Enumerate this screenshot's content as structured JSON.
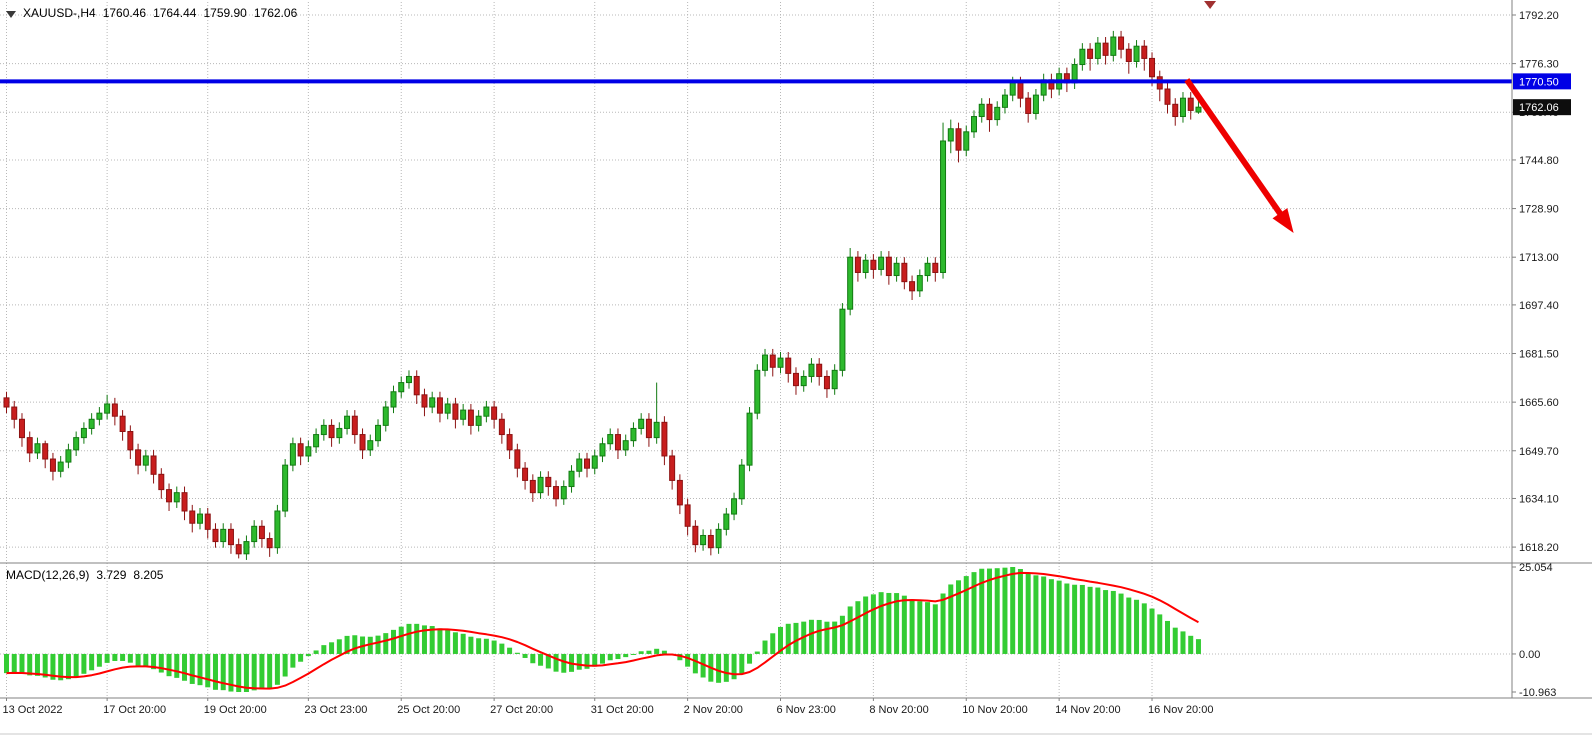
{
  "header": {
    "symbol_period": "XAUUSD-,H4",
    "open": "1760.46",
    "high": "1764.44",
    "low": "1759.90",
    "close": "1762.06"
  },
  "macd_header": {
    "label": "MACD(12,26,9)",
    "macd_value": "3.729",
    "signal_value": "8.205"
  },
  "chart_data": {
    "type": "candlestick",
    "symbol": "XAUUSD-",
    "timeframe": "H4",
    "quote": {
      "open": 1760.46,
      "high": 1764.44,
      "low": 1759.9,
      "close": 1762.06
    },
    "candles": [
      [
        1667,
        1669,
        1662,
        1664
      ],
      [
        1664,
        1666,
        1657,
        1660
      ],
      [
        1660,
        1662,
        1651,
        1654
      ],
      [
        1654,
        1656,
        1646,
        1649
      ],
      [
        1649,
        1654,
        1647,
        1652
      ],
      [
        1652,
        1653,
        1644,
        1647
      ],
      [
        1647,
        1649,
        1640,
        1643
      ],
      [
        1643,
        1648,
        1641,
        1646
      ],
      [
        1646,
        1652,
        1644,
        1650
      ],
      [
        1650,
        1656,
        1648,
        1654
      ],
      [
        1654,
        1659,
        1652,
        1657
      ],
      [
        1657,
        1662,
        1655,
        1660
      ],
      [
        1660,
        1664,
        1658,
        1662
      ],
      [
        1662,
        1668,
        1660,
        1665
      ],
      [
        1665,
        1667,
        1658,
        1661
      ],
      [
        1661,
        1663,
        1653,
        1656
      ],
      [
        1656,
        1658,
        1647,
        1650
      ],
      [
        1650,
        1652,
        1642,
        1645
      ],
      [
        1645,
        1650,
        1643,
        1648
      ],
      [
        1648,
        1650,
        1639,
        1642
      ],
      [
        1642,
        1644,
        1634,
        1637
      ],
      [
        1637,
        1639,
        1630,
        1633
      ],
      [
        1633,
        1638,
        1631,
        1636
      ],
      [
        1636,
        1638,
        1627,
        1630
      ],
      [
        1630,
        1632,
        1623,
        1626
      ],
      [
        1626,
        1631,
        1624,
        1629
      ],
      [
        1629,
        1631,
        1621,
        1624
      ],
      [
        1624,
        1626,
        1618,
        1620
      ],
      [
        1620,
        1626,
        1618,
        1624
      ],
      [
        1624,
        1626,
        1616,
        1619
      ],
      [
        1619,
        1621,
        1614.5,
        1616
      ],
      [
        1616,
        1622,
        1614,
        1620
      ],
      [
        1620,
        1627,
        1618,
        1625
      ],
      [
        1625,
        1627,
        1618,
        1621
      ],
      [
        1621,
        1623,
        1615,
        1618
      ],
      [
        1618,
        1632,
        1616,
        1630
      ],
      [
        1630,
        1647,
        1628,
        1645
      ],
      [
        1645,
        1654,
        1643,
        1652
      ],
      [
        1652,
        1654,
        1645,
        1648
      ],
      [
        1648,
        1653,
        1646,
        1651
      ],
      [
        1651,
        1657,
        1649,
        1655
      ],
      [
        1655,
        1660,
        1653,
        1658
      ],
      [
        1658,
        1660,
        1651,
        1654
      ],
      [
        1654,
        1659,
        1652,
        1657
      ],
      [
        1657,
        1663,
        1655,
        1661
      ],
      [
        1661,
        1663,
        1652,
        1655
      ],
      [
        1655,
        1657,
        1647,
        1650
      ],
      [
        1650,
        1655,
        1648,
        1653
      ],
      [
        1653,
        1660,
        1651,
        1658
      ],
      [
        1658,
        1666,
        1656,
        1664
      ],
      [
        1664,
        1671,
        1662,
        1669
      ],
      [
        1669,
        1674,
        1667,
        1672
      ],
      [
        1672,
        1676,
        1670,
        1674
      ],
      [
        1674,
        1676,
        1665,
        1668
      ],
      [
        1668,
        1670,
        1661,
        1664
      ],
      [
        1664,
        1669,
        1662,
        1667
      ],
      [
        1667,
        1669,
        1659,
        1662
      ],
      [
        1662,
        1667,
        1660,
        1665
      ],
      [
        1665,
        1667,
        1657,
        1660
      ],
      [
        1660,
        1665,
        1658,
        1663
      ],
      [
        1663,
        1665,
        1655,
        1658
      ],
      [
        1658,
        1663,
        1656,
        1661
      ],
      [
        1661,
        1666,
        1659,
        1664
      ],
      [
        1664,
        1666,
        1657,
        1660
      ],
      [
        1660,
        1662,
        1652,
        1655
      ],
      [
        1655,
        1657,
        1647,
        1650
      ],
      [
        1650,
        1652,
        1641,
        1644
      ],
      [
        1644,
        1646,
        1637,
        1640
      ],
      [
        1640,
        1642,
        1633,
        1636
      ],
      [
        1636,
        1643,
        1634,
        1641
      ],
      [
        1641,
        1643,
        1635,
        1638
      ],
      [
        1638,
        1640,
        1631.5,
        1634
      ],
      [
        1634,
        1640,
        1632,
        1638
      ],
      [
        1638,
        1645,
        1636,
        1643
      ],
      [
        1643,
        1649,
        1641,
        1647
      ],
      [
        1647,
        1649,
        1641,
        1644
      ],
      [
        1644,
        1650,
        1642,
        1648
      ],
      [
        1648,
        1654,
        1646,
        1652
      ],
      [
        1652,
        1657,
        1650,
        1655
      ],
      [
        1655,
        1657,
        1647,
        1650
      ],
      [
        1650,
        1655,
        1648,
        1653
      ],
      [
        1653,
        1659,
        1651,
        1657
      ],
      [
        1657,
        1662,
        1655,
        1660
      ],
      [
        1660,
        1662,
        1651,
        1654
      ],
      [
        1654,
        1672,
        1652,
        1659
      ],
      [
        1659,
        1661,
        1645,
        1648
      ],
      [
        1648,
        1650,
        1637,
        1640
      ],
      [
        1640,
        1642,
        1629,
        1632
      ],
      [
        1632,
        1634,
        1622,
        1625
      ],
      [
        1625,
        1627,
        1616.5,
        1619
      ],
      [
        1619,
        1624,
        1617,
        1622
      ],
      [
        1622,
        1624,
        1615.5,
        1618
      ],
      [
        1618,
        1626,
        1616,
        1624
      ],
      [
        1624,
        1631,
        1622,
        1629
      ],
      [
        1629,
        1636,
        1627,
        1634
      ],
      [
        1634,
        1647,
        1632,
        1645
      ],
      [
        1645,
        1664,
        1643,
        1662
      ],
      [
        1662,
        1678,
        1660,
        1676
      ],
      [
        1676,
        1683,
        1674,
        1681
      ],
      [
        1681,
        1683,
        1674,
        1677
      ],
      [
        1677,
        1682,
        1675,
        1680
      ],
      [
        1680,
        1682,
        1672,
        1675
      ],
      [
        1675,
        1677,
        1668,
        1671
      ],
      [
        1671,
        1676,
        1669,
        1674
      ],
      [
        1674,
        1680,
        1672,
        1678
      ],
      [
        1678,
        1680,
        1671,
        1674
      ],
      [
        1674,
        1676,
        1667,
        1670
      ],
      [
        1670,
        1678,
        1668,
        1676
      ],
      [
        1676,
        1698,
        1674,
        1696
      ],
      [
        1696,
        1716,
        1694,
        1713
      ],
      [
        1713,
        1715,
        1705,
        1708
      ],
      [
        1708,
        1714,
        1706,
        1712
      ],
      [
        1712,
        1714,
        1706,
        1709
      ],
      [
        1709,
        1715,
        1707,
        1713
      ],
      [
        1713,
        1715,
        1704,
        1707
      ],
      [
        1707,
        1713,
        1705,
        1711
      ],
      [
        1711,
        1713,
        1702.5,
        1705
      ],
      [
        1705,
        1707,
        1699,
        1702
      ],
      [
        1702,
        1709,
        1700,
        1707
      ],
      [
        1707,
        1713,
        1705,
        1711
      ],
      [
        1711,
        1713,
        1705,
        1708
      ],
      [
        1708,
        1757,
        1706,
        1751
      ],
      [
        1751,
        1758,
        1747,
        1755
      ],
      [
        1755,
        1757,
        1744,
        1748
      ],
      [
        1748,
        1756,
        1746,
        1754
      ],
      [
        1754,
        1761,
        1752,
        1759
      ],
      [
        1759,
        1765,
        1757,
        1763
      ],
      [
        1763,
        1765,
        1754,
        1758
      ],
      [
        1758,
        1764,
        1756,
        1762
      ],
      [
        1762,
        1768,
        1760,
        1766
      ],
      [
        1766,
        1772,
        1764,
        1770
      ],
      [
        1770,
        1772,
        1762,
        1765
      ],
      [
        1765,
        1767,
        1757,
        1760
      ],
      [
        1760,
        1768,
        1758,
        1766
      ],
      [
        1766,
        1773,
        1764,
        1771
      ],
      [
        1771,
        1773,
        1765,
        1768
      ],
      [
        1768,
        1775,
        1766,
        1773
      ],
      [
        1773,
        1775,
        1767,
        1770
      ],
      [
        1770,
        1778,
        1768,
        1776
      ],
      [
        1776,
        1783,
        1774,
        1781
      ],
      [
        1781,
        1783,
        1774,
        1778
      ],
      [
        1778,
        1785,
        1776,
        1783
      ],
      [
        1783,
        1785,
        1776,
        1779
      ],
      [
        1779,
        1787,
        1777,
        1785
      ],
      [
        1785,
        1787,
        1778,
        1781
      ],
      [
        1781,
        1783,
        1773,
        1777
      ],
      [
        1777,
        1784,
        1775,
        1782
      ],
      [
        1782,
        1784,
        1774,
        1778
      ],
      [
        1778,
        1780,
        1769,
        1772
      ],
      [
        1772,
        1774,
        1764,
        1768
      ],
      [
        1768,
        1770,
        1760,
        1763
      ],
      [
        1763,
        1765,
        1756,
        1759
      ],
      [
        1759,
        1767,
        1757,
        1765
      ],
      [
        1765,
        1767,
        1758,
        1761
      ],
      [
        1760.46,
        1764.44,
        1759.9,
        1762.06
      ]
    ],
    "x_ticks": [
      {
        "label": "13 Oct 2022",
        "index": 0
      },
      {
        "label": "17 Oct 20:00",
        "index": 13
      },
      {
        "label": "19 Oct 20:00",
        "index": 26
      },
      {
        "label": "23 Oct 23:00",
        "index": 39
      },
      {
        "label": "25 Oct 20:00",
        "index": 51
      },
      {
        "label": "27 Oct 20:00",
        "index": 63
      },
      {
        "label": "31 Oct 20:00",
        "index": 76
      },
      {
        "label": "2 Nov 20:00",
        "index": 88
      },
      {
        "label": "6 Nov 23:00",
        "index": 100
      },
      {
        "label": "8 Nov 20:00",
        "index": 112
      },
      {
        "label": "10 Nov 20:00",
        "index": 124
      },
      {
        "label": "14 Nov 20:00",
        "index": 136
      },
      {
        "label": "16 Nov 20:00",
        "index": 148
      }
    ],
    "y_ticks": [
      {
        "label": "1792.20",
        "value": 1792.2
      },
      {
        "label": "1776.30",
        "value": 1776.3
      },
      {
        "label": "1760.40",
        "value": 1760.4
      },
      {
        "label": "1744.80",
        "value": 1744.8
      },
      {
        "label": "1728.90",
        "value": 1728.9
      },
      {
        "label": "1713.00",
        "value": 1713.0
      },
      {
        "label": "1697.40",
        "value": 1697.4
      },
      {
        "label": "1681.50",
        "value": 1681.5
      },
      {
        "label": "1665.60",
        "value": 1665.6
      },
      {
        "label": "1649.70",
        "value": 1649.7
      },
      {
        "label": "1634.10",
        "value": 1634.1
      },
      {
        "label": "1618.20",
        "value": 1618.2
      }
    ],
    "horizontal_line": {
      "price": 1770.5,
      "label": "1770.50"
    },
    "current_price": {
      "value": 1762.06,
      "label": "1762.06"
    },
    "macd": {
      "label": "MACD(12,26,9)",
      "params": [
        12,
        26,
        9
      ],
      "macd_value": 3.729,
      "signal_value": 8.205,
      "axis_ticks": [
        {
          "label": "25.054",
          "value": 25.054
        },
        {
          "label": "0.00",
          "value": 0
        },
        {
          "label": "-10.963",
          "value": -10.963
        }
      ]
    },
    "annotations": {
      "arrow": {
        "from": {
          "index": 152.5,
          "price": 1771
        },
        "to": {
          "index": 166,
          "price": 1722
        }
      },
      "top_marker": {
        "index": 155.5
      }
    },
    "colors": {
      "bull": "#2db92d",
      "bull_border": "#127a12",
      "bear": "#c81e1e",
      "bear_border": "#8c1212",
      "grid": "#b8b8b8",
      "hline": "#0000e6",
      "current_badge": "#0d0d0d",
      "macd_hist": "#33cc33",
      "macd_signal": "#ff0000",
      "arrow": "#ee0000",
      "marker": "#a03030",
      "separator": "#808080",
      "axis_text": "#1a1a1a"
    }
  }
}
